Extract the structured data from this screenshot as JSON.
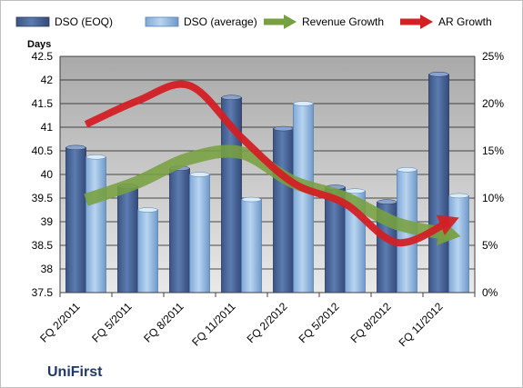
{
  "company": "UniFirst",
  "chart_data": {
    "type": "bar",
    "categories": [
      "FQ 2/2011",
      "FQ 5/2011",
      "FQ 8/2011",
      "FQ 11/2011",
      "FQ 2/2012",
      "FQ 5/2012",
      "FQ 8/2012",
      "FQ 11/2012"
    ],
    "series": [
      {
        "name": "DSO (EOQ)",
        "type": "bar",
        "axis": "left",
        "color": "#4f6fa0",
        "values": [
          40.57,
          39.75,
          40.13,
          41.63,
          40.97,
          39.73,
          39.42,
          42.12
        ]
      },
      {
        "name": "DSO (average)",
        "type": "bar",
        "axis": "left",
        "color": "#a6c8ea",
        "values": [
          40.37,
          39.25,
          40.0,
          39.47,
          41.5,
          39.65,
          40.1,
          39.55
        ]
      },
      {
        "name": "Revenue Growth",
        "type": "line",
        "axis": "right",
        "color": "#77a040",
        "values": [
          9.8,
          11.7,
          14.2,
          14.8,
          11.7,
          10.0,
          7.3,
          6.2
        ]
      },
      {
        "name": "AR Growth",
        "type": "line",
        "axis": "right",
        "color": "#d32025",
        "values": [
          17.8,
          20.3,
          21.9,
          16.4,
          11.6,
          9.4,
          5.3,
          7.5
        ]
      }
    ],
    "ylabel": "Days",
    "ylim": [
      37.5,
      42.5
    ],
    "yticks": [
      "37.5",
      "38",
      "38.5",
      "39",
      "39.5",
      "40",
      "40.5",
      "41",
      "41.5",
      "42",
      "42.5"
    ],
    "y2lim": [
      0,
      25
    ],
    "y2ticks": [
      "0%",
      "5%",
      "10%",
      "15%",
      "20%",
      "25%"
    ],
    "grid": true,
    "legend_position": "top"
  }
}
